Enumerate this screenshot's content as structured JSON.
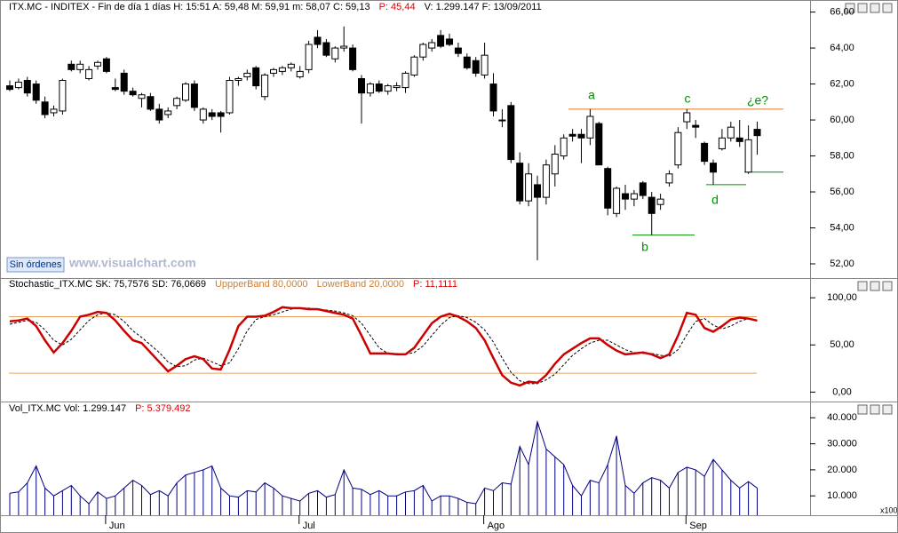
{
  "ui": {
    "button": "Sin órdenes",
    "watermark": "www.visualchart.com",
    "multiplier": "x100"
  },
  "chart_data": [
    {
      "type": "candlestick",
      "header": [
        {
          "text": "ITX.MC - INDITEX - Fin de día 1 días  H: 15:51  A: 59,48  M: 59,91  m: 58,07  C: 59,13",
          "color": "#000000"
        },
        {
          "text": "P: 45,44",
          "color": "#e00000"
        },
        {
          "text": "V: 1.299.147  F: 13/09/2011",
          "color": "#000000"
        }
      ],
      "open": [
        61.9,
        61.8,
        62.2,
        62.0,
        61.0,
        60.4,
        60.5,
        63.1,
        62.8,
        62.3,
        63.0,
        63.4,
        61.8,
        62.6,
        61.6,
        61.2,
        61.3,
        60.6,
        60.3,
        60.8,
        61.1,
        62.0,
        60.0,
        60.4,
        60.4,
        60.4,
        62.2,
        62.4,
        62.9,
        61.3,
        62.6,
        62.7,
        62.9,
        62.4,
        62.8,
        64.6,
        64.3,
        63.4,
        64.0,
        64.0,
        62.3,
        61.5,
        62.0,
        61.6,
        61.8,
        61.8,
        62.5,
        63.5,
        64.0,
        64.7,
        64.5,
        64.0,
        63.5,
        63.3,
        62.5,
        62.0,
        60.0,
        60.8,
        57.6,
        55.5,
        56.4,
        55.7,
        57.0,
        58.0,
        59.2,
        59.2,
        59.0,
        59.8,
        57.3,
        54.8,
        55.9,
        55.6,
        56.5,
        55.7,
        55.3,
        56.5,
        57.5,
        59.9,
        59.7,
        58.7,
        57.6,
        58.4,
        59.0,
        59.0,
        57.1,
        59.48
      ],
      "high": [
        62.2,
        62.3,
        62.4,
        62.2,
        61.3,
        60.8,
        62.3,
        63.3,
        63.3,
        63.0,
        63.3,
        63.5,
        62.3,
        62.8,
        61.8,
        61.5,
        61.5,
        60.9,
        60.7,
        61.3,
        62.1,
        62.2,
        60.7,
        60.6,
        60.5,
        62.4,
        62.4,
        62.8,
        63.0,
        62.6,
        62.9,
        63.0,
        63.2,
        63.0,
        64.4,
        65.0,
        64.5,
        64.1,
        65.2,
        64.2,
        62.5,
        62.1,
        62.2,
        62.0,
        62.1,
        62.7,
        63.6,
        64.3,
        64.5,
        65.0,
        64.8,
        64.3,
        63.7,
        63.5,
        64.3,
        62.6,
        60.6,
        61.0,
        58.2,
        57.6,
        56.9,
        57.8,
        58.6,
        59.2,
        59.5,
        59.5,
        60.6,
        59.9,
        57.4,
        56.3,
        56.4,
        56.1,
        56.6,
        56.0,
        55.9,
        57.2,
        59.6,
        60.6,
        60.0,
        58.8,
        57.8,
        59.5,
        59.9,
        60.0,
        59.7,
        59.91
      ],
      "low": [
        61.6,
        61.7,
        61.3,
        60.9,
        60.1,
        60.2,
        60.3,
        62.7,
        62.6,
        62.2,
        62.8,
        62.6,
        61.6,
        61.4,
        61.3,
        60.7,
        60.5,
        59.8,
        60.1,
        60.6,
        61.0,
        60.5,
        59.8,
        60.0,
        59.3,
        60.3,
        61.9,
        62.2,
        61.7,
        61.1,
        62.4,
        62.5,
        62.7,
        62.3,
        62.6,
        64.0,
        63.5,
        63.2,
        63.8,
        62.7,
        59.8,
        61.3,
        61.5,
        61.4,
        61.6,
        61.5,
        62.4,
        63.3,
        63.8,
        64.0,
        64.1,
        63.5,
        62.8,
        62.4,
        62.3,
        60.2,
        59.6,
        57.6,
        55.3,
        55.2,
        52.2,
        55.3,
        56.3,
        57.8,
        58.8,
        57.6,
        58.6,
        57.5,
        54.7,
        54.6,
        55.0,
        55.2,
        55.6,
        53.6,
        55.0,
        56.3,
        57.3,
        59.5,
        59.0,
        57.5,
        56.4,
        58.3,
        58.8,
        58.5,
        57.0,
        58.07
      ],
      "close": [
        61.7,
        62.1,
        61.5,
        61.1,
        60.3,
        60.6,
        62.2,
        62.8,
        63.1,
        62.8,
        63.2,
        62.7,
        61.7,
        61.6,
        61.4,
        61.4,
        60.6,
        60.0,
        60.5,
        61.2,
        62.0,
        60.7,
        60.6,
        60.2,
        60.2,
        62.2,
        62.3,
        62.6,
        61.9,
        62.5,
        62.8,
        62.9,
        63.1,
        62.7,
        64.2,
        64.2,
        63.6,
        64.0,
        64.1,
        62.8,
        61.5,
        62.0,
        61.6,
        61.9,
        61.9,
        62.6,
        63.5,
        64.2,
        64.3,
        64.1,
        64.2,
        63.7,
        62.9,
        62.6,
        63.6,
        60.5,
        60.0,
        57.8,
        55.5,
        57.0,
        55.7,
        57.5,
        58.1,
        59.0,
        59.1,
        59.0,
        60.2,
        57.5,
        55.1,
        56.2,
        55.6,
        55.9,
        55.8,
        54.8,
        55.6,
        57.0,
        59.3,
        60.4,
        59.6,
        57.7,
        57.1,
        59.0,
        59.6,
        58.8,
        58.9,
        59.13
      ],
      "up_color": "#ffffff",
      "down_color": "#000000",
      "ylim": [
        51.21,
        65.93
      ],
      "yticks": [
        {
          "value": 52,
          "label": "52,00"
        },
        {
          "value": 54,
          "label": "54,00"
        },
        {
          "value": 56,
          "label": "56,00"
        },
        {
          "value": 58,
          "label": "58,00"
        },
        {
          "value": 60,
          "label": "60,00"
        },
        {
          "value": 62,
          "label": "62,00"
        },
        {
          "value": 64,
          "label": "64,00"
        },
        {
          "value": 66,
          "label": "66,00"
        }
      ],
      "annotations": [
        "a",
        "b",
        "c",
        "d",
        "¿e?"
      ],
      "lines": [
        {
          "value": 60.6,
          "color": "#e07828"
        },
        {
          "value": 53.6,
          "color": "#009000"
        },
        {
          "value": 56.4,
          "color": "#009000"
        },
        {
          "value": 57.1,
          "color": "#009000"
        }
      ]
    },
    {
      "type": "line",
      "header": [
        {
          "text": "Stochastic_ITX.MC  SK: 75,7576  SD: 76,0669",
          "color": "#000000"
        },
        {
          "text": "UppperBand  80,0000",
          "color": "#d08030"
        },
        {
          "text": "LowerBand  20,0000",
          "color": "#d08030"
        },
        {
          "text": "P: 11,1111",
          "color": "#e00000"
        }
      ],
      "bands": [
        80,
        20
      ],
      "band_color": "#e8a060",
      "series": [
        {
          "name": "SK",
          "color": "#cc0000",
          "values": [
            75,
            76,
            78,
            70,
            55,
            42,
            52,
            65,
            80,
            82,
            85,
            84,
            76,
            65,
            55,
            52,
            42,
            32,
            22,
            28,
            35,
            38,
            35,
            25,
            24,
            45,
            70,
            80,
            80,
            81,
            85,
            90,
            89,
            89,
            88,
            88,
            86,
            84,
            82,
            78,
            60,
            41,
            41,
            41,
            40,
            40,
            47,
            60,
            73,
            80,
            83,
            80,
            75,
            68,
            55,
            36,
            18,
            10,
            7,
            11,
            10,
            18,
            30,
            40,
            46,
            52,
            57,
            57,
            50,
            44,
            40,
            41,
            42,
            40,
            36,
            40,
            60,
            84,
            82,
            68,
            64,
            70,
            77,
            79,
            78,
            75.76
          ]
        },
        {
          "name": "SD",
          "color": "#000000",
          "values": [
            72,
            74,
            76,
            74,
            66,
            55,
            50,
            56,
            66,
            76,
            82,
            84,
            82,
            75,
            65,
            58,
            50,
            42,
            32,
            27,
            28,
            34,
            36,
            32,
            28,
            31,
            46,
            65,
            77,
            80,
            82,
            85,
            88,
            89,
            89,
            88,
            87,
            86,
            84,
            81,
            73,
            60,
            47,
            41,
            41,
            40,
            42,
            49,
            60,
            71,
            79,
            81,
            79,
            74,
            66,
            53,
            36,
            21,
            12,
            9,
            9,
            13,
            19,
            29,
            39,
            46,
            52,
            55,
            55,
            50,
            45,
            42,
            41,
            41,
            39,
            38,
            45,
            61,
            75,
            78,
            71,
            67,
            70,
            75,
            78,
            76.07
          ]
        }
      ],
      "ylim": [
        -10,
        120
      ],
      "yticks": [
        {
          "value": 0,
          "label": "0,00"
        },
        {
          "value": 50,
          "label": "50,00"
        },
        {
          "value": 100,
          "label": "100,00"
        }
      ]
    },
    {
      "type": "volume",
      "header": [
        {
          "text": "Vol_ITX.MC  Vol: 1.299.147",
          "color": "#000000"
        },
        {
          "text": "P: 5.379.492",
          "color": "#e00000"
        }
      ],
      "color": "#000080",
      "categories": [
        null,
        null,
        null,
        null,
        null,
        null,
        null,
        null,
        null,
        null,
        null,
        "Jun",
        null,
        null,
        null,
        null,
        null,
        null,
        null,
        null,
        null,
        null,
        null,
        null,
        null,
        null,
        null,
        null,
        null,
        null,
        null,
        null,
        null,
        "Jul",
        null,
        null,
        null,
        null,
        null,
        null,
        null,
        null,
        null,
        null,
        null,
        null,
        null,
        null,
        null,
        null,
        null,
        null,
        null,
        null,
        "Ago",
        null,
        null,
        null,
        null,
        null,
        null,
        null,
        null,
        null,
        null,
        null,
        null,
        null,
        null,
        null,
        null,
        null,
        null,
        null,
        null,
        null,
        null,
        "Sep",
        null,
        null,
        null,
        null,
        null,
        null,
        null,
        null
      ],
      "values": [
        11000,
        11500,
        15000,
        21500,
        13000,
        10000,
        12000,
        14000,
        10000,
        7000,
        11500,
        9000,
        10000,
        13000,
        16000,
        14000,
        10500,
        12000,
        10000,
        15000,
        18000,
        19000,
        20000,
        21500,
        13000,
        10000,
        9500,
        12000,
        11500,
        15000,
        13000,
        10000,
        9000,
        8000,
        11000,
        12000,
        9500,
        10500,
        20000,
        13000,
        12500,
        10500,
        12000,
        10000,
        10000,
        11500,
        12000,
        14000,
        8000,
        10000,
        10000,
        9000,
        7500,
        7000,
        13000,
        12000,
        15000,
        14500,
        29000,
        22000,
        38500,
        28000,
        25000,
        22000,
        14000,
        10000,
        16000,
        15000,
        22000,
        33000,
        14000,
        11000,
        15000,
        17000,
        16000,
        13000,
        19000,
        21000,
        20000,
        17500,
        24000,
        20000,
        16000,
        13000,
        15500,
        12991
      ],
      "ylim": [
        2560,
        45560
      ],
      "yticks": [
        {
          "value": 10000,
          "label": "10.000"
        },
        {
          "value": 20000,
          "label": "20.000"
        },
        {
          "value": 30000,
          "label": "30.000"
        },
        {
          "value": 40000,
          "label": "40.000"
        }
      ]
    }
  ]
}
